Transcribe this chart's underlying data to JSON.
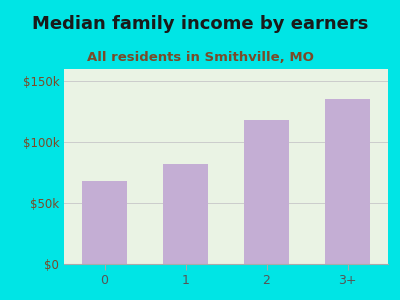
{
  "title": "Median family income by earners",
  "subtitle": "All residents in Smithville, MO",
  "categories": [
    "0",
    "1",
    "2",
    "3+"
  ],
  "values": [
    68000,
    82000,
    118000,
    135000
  ],
  "bar_color": "#c4aed4",
  "outer_bg": "#00e5e5",
  "inner_bg": "#eaf3e4",
  "title_color": "#1a1a1a",
  "subtitle_color": "#7a4a28",
  "axis_label_color": "#7a4a28",
  "yticks": [
    0,
    50000,
    100000,
    150000
  ],
  "ytick_labels": [
    "$0",
    "$50k",
    "$100k",
    "$150k"
  ],
  "ylim": [
    0,
    160000
  ],
  "title_fontsize": 13,
  "subtitle_fontsize": 9.5
}
